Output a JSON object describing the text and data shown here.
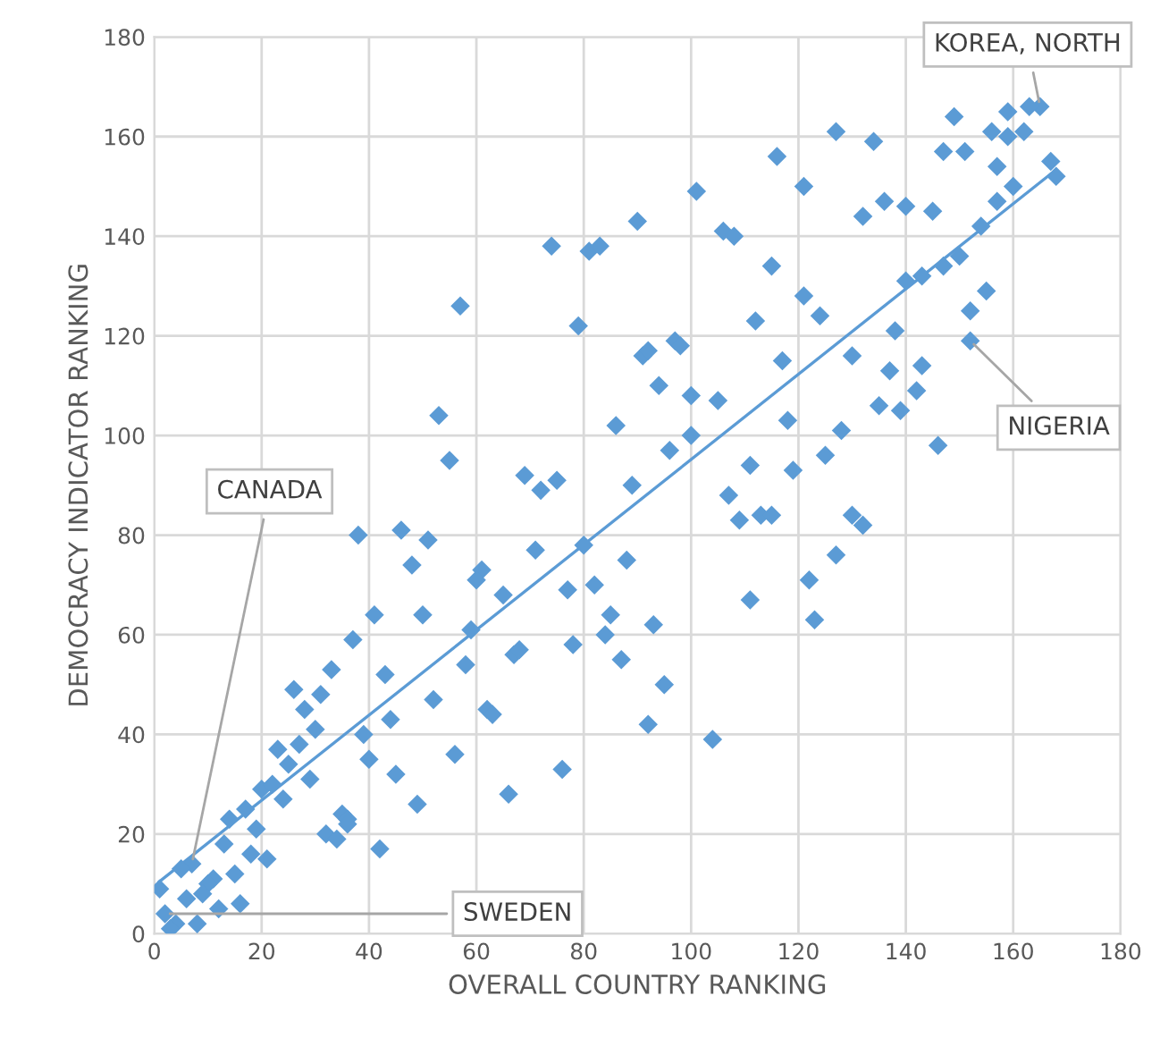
{
  "chart_data": {
    "type": "scatter",
    "xlabel": "OVERALL COUNTRY RANKING",
    "ylabel": "DEMOCRACY INDICATOR RANKING",
    "xlim": [
      0,
      180
    ],
    "ylim": [
      0,
      180
    ],
    "xticks": [
      0,
      20,
      40,
      60,
      80,
      100,
      120,
      140,
      160,
      180
    ],
    "yticks": [
      0,
      20,
      40,
      60,
      80,
      100,
      120,
      140,
      160,
      180
    ],
    "grid": true,
    "series": [
      {
        "color": "#5b9bd5",
        "marker": "diamond",
        "x": [
          38,
          51,
          48,
          61,
          60,
          41,
          50,
          37,
          59,
          33,
          43,
          58,
          26,
          31,
          28,
          30,
          52,
          62,
          63,
          44,
          39,
          23,
          27,
          25,
          40,
          45,
          56,
          20,
          22,
          29,
          24,
          49,
          17,
          14,
          19,
          35,
          36,
          36,
          32,
          34,
          42,
          13,
          18,
          21,
          7,
          5,
          15,
          11,
          10,
          9,
          1,
          6,
          16,
          12,
          2,
          8,
          4,
          3,
          53,
          55,
          69,
          72,
          75,
          86,
          94,
          91,
          89,
          96,
          71,
          65,
          80,
          88,
          77,
          82,
          85,
          84,
          78,
          87,
          93,
          95,
          92,
          67,
          68,
          76,
          66,
          46,
          104,
          116,
          121,
          101,
          90,
          106,
          108,
          74,
          81,
          83,
          115,
          57,
          121,
          124,
          112,
          79,
          117,
          97,
          98,
          92,
          100,
          105,
          118,
          100,
          111,
          125,
          119,
          128,
          107,
          109,
          113,
          115,
          127,
          122,
          123,
          111,
          149,
          159,
          165,
          127,
          134,
          156,
          162,
          159,
          147,
          151,
          157,
          167,
          168,
          160,
          157,
          136,
          132,
          140,
          145,
          154,
          150,
          147,
          143,
          140,
          155,
          152,
          152,
          138,
          130,
          143,
          137,
          142,
          135,
          139,
          146,
          130,
          132,
          163
        ],
        "values": [
          80,
          79,
          74,
          73,
          71,
          64,
          64,
          59,
          61,
          53,
          52,
          54,
          49,
          48,
          45,
          41,
          47,
          45,
          44,
          43,
          40,
          37,
          38,
          34,
          35,
          32,
          36,
          29,
          30,
          31,
          27,
          26,
          25,
          23,
          21,
          24,
          23,
          22,
          20,
          19,
          17,
          18,
          16,
          15,
          14,
          13,
          12,
          11,
          10,
          8,
          9,
          7,
          6,
          5,
          4,
          2,
          2,
          1,
          104,
          95,
          92,
          89,
          91,
          102,
          110,
          116,
          90,
          97,
          77,
          68,
          78,
          75,
          69,
          70,
          64,
          60,
          58,
          55,
          62,
          50,
          42,
          56,
          57,
          33,
          28,
          81,
          39,
          156,
          150,
          149,
          143,
          141,
          140,
          138,
          137,
          138,
          134,
          126,
          128,
          124,
          123,
          122,
          115,
          119,
          118,
          117,
          108,
          107,
          103,
          100,
          94,
          96,
          93,
          101,
          88,
          83,
          84,
          84,
          76,
          71,
          63,
          67,
          164,
          165,
          166,
          161,
          159,
          161,
          161,
          160,
          157,
          157,
          154,
          155,
          152,
          150,
          147,
          147,
          144,
          146,
          145,
          142,
          136,
          134,
          132,
          131,
          129,
          125,
          119,
          121,
          116,
          114,
          113,
          109,
          106,
          105,
          98,
          84,
          82,
          166
        ]
      },
      {
        "type": "line",
        "color": "#5b9bd5",
        "x": [
          1,
          167
        ],
        "values": [
          10.5,
          152.5
        ],
        "line_style": "solid"
      }
    ],
    "annotations": [
      {
        "text": "CANADA",
        "x": 7,
        "y": 14
      },
      {
        "text": "SWEDEN",
        "x": 2,
        "y": 4
      },
      {
        "text": "NIGERIA",
        "x": 152,
        "y": 119
      },
      {
        "text": "KOREA, NORTH",
        "x": 165,
        "y": 166
      }
    ]
  }
}
